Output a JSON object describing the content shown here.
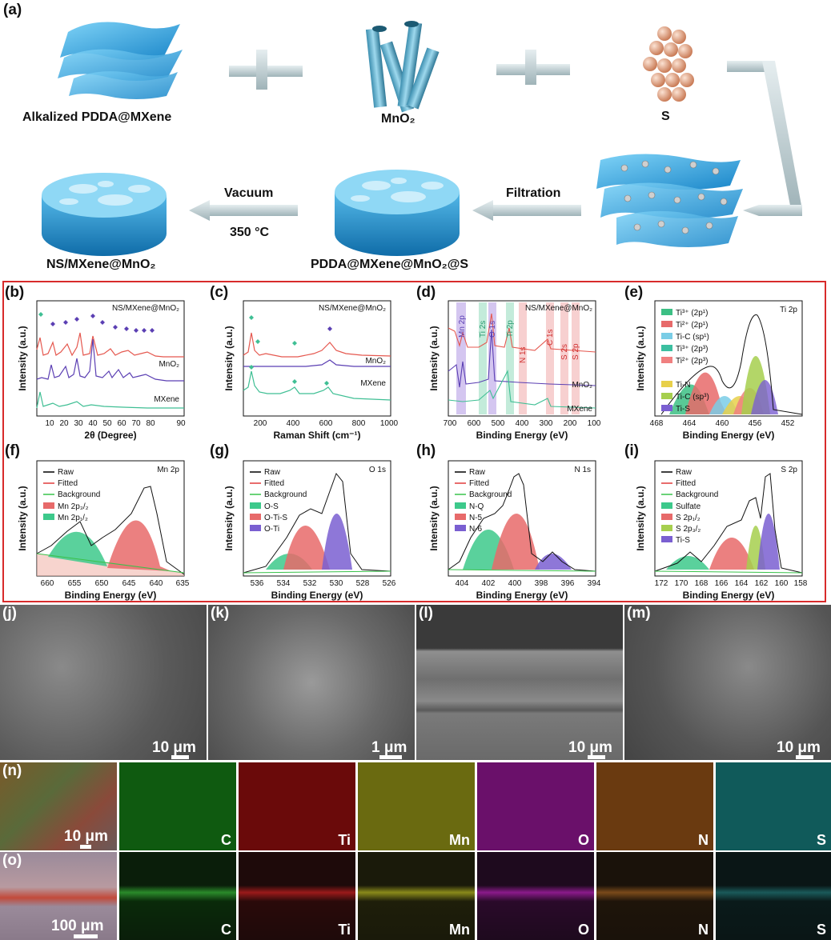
{
  "panel_labels": {
    "a": "(a)",
    "b": "(b)",
    "c": "(c)",
    "d": "(d)",
    "e": "(e)",
    "f": "(f)",
    "g": "(g)",
    "h": "(h)",
    "i": "(i)",
    "j": "(j)",
    "k": "(k)",
    "l": "(l)",
    "m": "(m)",
    "n": "(n)",
    "o": "(o)"
  },
  "schematic": {
    "mxene_label": "Alkalized PDDA@MXene",
    "mno2_label": "MnO₂",
    "s_label": "S",
    "vacuum_label": "Vacuum",
    "temp_label": "350 °C",
    "filtration_label": "Filtration",
    "final_label": "NS/MXene@MnO₂",
    "intermediate_label": "PDDA@MXene@MnO₂@S"
  },
  "sem": {
    "j": {
      "scale": "10 μm"
    },
    "k": {
      "scale": "1 μm"
    },
    "l": {
      "scale": "10 μm"
    },
    "m": {
      "scale": "10 μm"
    }
  },
  "eds_n": {
    "scale": "10 μm",
    "elements": [
      "C",
      "Ti",
      "Mn",
      "O",
      "N",
      "S"
    ]
  },
  "eds_o": {
    "scale": "100 μm",
    "elements": [
      "C",
      "Ti",
      "Mn",
      "O",
      "N",
      "S"
    ]
  },
  "colors": {
    "red_frame": "#d82b2b",
    "ns_line": "#e5584f",
    "mno2_line": "#5b3fb3",
    "mxene_line": "#3fbf94",
    "raw": "#000000",
    "fitted": "#e03a3a",
    "background": "#39c24a"
  },
  "chart_data": [
    {
      "id": "b",
      "type": "line",
      "xlabel": "2θ (Degree)",
      "ylabel": "Intensity (a.u.)",
      "xlim": [
        5,
        90
      ],
      "xticks": [
        10,
        20,
        30,
        40,
        50,
        60,
        70,
        80,
        90
      ],
      "series": [
        {
          "name": "NS/MXene@MnO₂"
        },
        {
          "name": "MnO₂"
        },
        {
          "name": "MXene"
        }
      ],
      "series_labels": [
        "NS/MXene@MnO₂",
        "MnO₂",
        "MXene"
      ]
    },
    {
      "id": "c",
      "type": "line",
      "xlabel": "Raman Shift (cm⁻¹)",
      "ylabel": "Intensity (a.u.)",
      "xlim": [
        100,
        1000
      ],
      "xticks": [
        200,
        400,
        600,
        800,
        1000
      ],
      "series_labels": [
        "NS/MXene@MnO₂",
        "MnO₂",
        "MXene"
      ]
    },
    {
      "id": "d",
      "type": "line",
      "xlabel": "Binding Energy (eV)",
      "ylabel": "Intensity (a.u.)",
      "xlim": [
        700,
        100
      ],
      "xticks": [
        700,
        600,
        500,
        400,
        300,
        200,
        100
      ],
      "series_labels": [
        "NS/MXene@MnO₂",
        "MnO₂",
        "MXene"
      ],
      "annotations": [
        "Mn 2p",
        "Ti 2s",
        "O 1s",
        "Ti 2p",
        "N 1s",
        "C 1s",
        "S 2s",
        "S 2p"
      ]
    },
    {
      "id": "e",
      "type": "area",
      "xlabel": "Binding Energy (eV)",
      "ylabel": "Intensity (a.u.)",
      "xlim": [
        468,
        450
      ],
      "xticks": [
        468,
        464,
        460,
        456,
        452
      ],
      "title": "Ti 2p",
      "legend": [
        "Ti³⁺ (2p¹)",
        "Ti²⁺ (2p¹)",
        "Ti-C (sp¹)",
        "Ti³⁺ (2p³)",
        "Ti²⁺ (2p³)",
        "Ti-N",
        "Ti-C (sp³)",
        "Ti-S"
      ]
    },
    {
      "id": "f",
      "type": "area",
      "xlabel": "Binding Energy (eV)",
      "ylabel": "Intensity (a.u.)",
      "xlim": [
        662,
        635
      ],
      "xticks": [
        660,
        655,
        650,
        645,
        640,
        635
      ],
      "title": "Mn 2p",
      "legend": [
        "Raw",
        "Fitted",
        "Background",
        "Mn 2p₃/₂",
        "Mn 2p₁/₂"
      ]
    },
    {
      "id": "g",
      "type": "area",
      "xlabel": "Binding Energy (eV)",
      "ylabel": "Intensity (a.u.)",
      "xlim": [
        537,
        526
      ],
      "xticks": [
        536,
        534,
        532,
        530,
        528,
        526
      ],
      "title": "O 1s",
      "legend": [
        "Raw",
        "Fitted",
        "Background",
        "O-S",
        "O-Ti-S",
        "O-Ti"
      ]
    },
    {
      "id": "h",
      "type": "area",
      "xlabel": "Binding Energy (eV)",
      "ylabel": "Intensity (a.u.)",
      "xlim": [
        405,
        394
      ],
      "xticks": [
        404,
        402,
        400,
        398,
        396,
        394
      ],
      "title": "N 1s",
      "legend": [
        "Raw",
        "Fitted",
        "Background",
        "N-Q",
        "N-5",
        "N-6"
      ]
    },
    {
      "id": "i",
      "type": "area",
      "xlabel": "Binding Energy (eV)",
      "ylabel": "Intensity (a.u.)",
      "xlim": [
        172,
        158
      ],
      "xticks": [
        172,
        170,
        168,
        166,
        164,
        162,
        160,
        158
      ],
      "title": "S 2p",
      "legend": [
        "Raw",
        "Fitted",
        "Background",
        "Sulfate",
        "S 2p₁/₂",
        "S 2p₃/₂",
        "Ti-S"
      ]
    }
  ]
}
